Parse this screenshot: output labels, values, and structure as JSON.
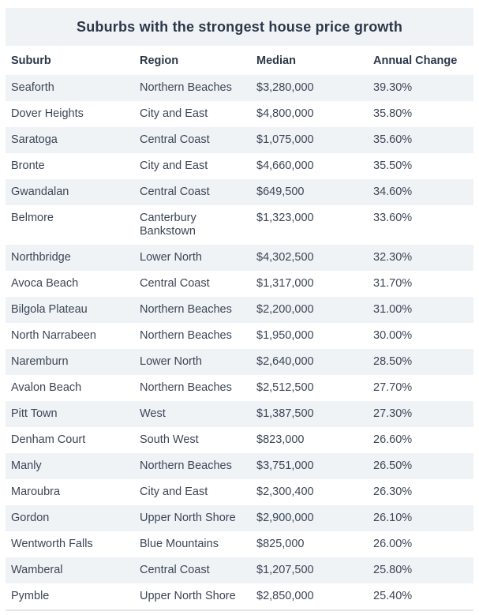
{
  "title": "Suburbs with the strongest house price growth",
  "colors": {
    "stripe_bg": "#f0f3f6",
    "title_bg": "#f0f3f6",
    "heading_text": "#2d3748",
    "body_text": "#3c4656",
    "divider": "#e2e5ea",
    "page_bg": "#ffffff"
  },
  "chart_data": {
    "type": "table",
    "title": "Suburbs with the strongest house price growth",
    "columns": [
      "Suburb",
      "Region",
      "Median",
      "Annual Change"
    ],
    "rows": [
      [
        "Seaforth",
        "Northern Beaches",
        "$3,280,000",
        "39.30%"
      ],
      [
        "Dover Heights",
        "City and East",
        "$4,800,000",
        "35.80%"
      ],
      [
        "Saratoga",
        "Central Coast",
        "$1,075,000",
        "35.60%"
      ],
      [
        "Bronte",
        "City and East",
        "$4,660,000",
        "35.50%"
      ],
      [
        "Gwandalan",
        "Central Coast",
        "$649,500",
        "34.60%"
      ],
      [
        "Belmore",
        "Canterbury Bankstown",
        "$1,323,000",
        "33.60%"
      ],
      [
        "Northbridge",
        "Lower North",
        "$4,302,500",
        "32.30%"
      ],
      [
        "Avoca Beach",
        "Central Coast",
        "$1,317,000",
        "31.70%"
      ],
      [
        "Bilgola Plateau",
        "Northern Beaches",
        "$2,200,000",
        "31.00%"
      ],
      [
        "North Narrabeen",
        "Northern Beaches",
        "$1,950,000",
        "30.00%"
      ],
      [
        "Naremburn",
        "Lower North",
        "$2,640,000",
        "28.50%"
      ],
      [
        "Avalon Beach",
        "Northern Beaches",
        "$2,512,500",
        "27.70%"
      ],
      [
        "Pitt Town",
        "West",
        "$1,387,500",
        "27.30%"
      ],
      [
        "Denham Court",
        "South West",
        "$823,000",
        "26.60%"
      ],
      [
        "Manly",
        "Northern Beaches",
        "$3,751,000",
        "26.50%"
      ],
      [
        "Maroubra",
        "City and East",
        "$2,300,400",
        "26.30%"
      ],
      [
        "Gordon",
        "Upper North Shore",
        "$2,900,000",
        "26.10%"
      ],
      [
        "Wentworth Falls",
        "Blue Mountains",
        "$825,000",
        "26.00%"
      ],
      [
        "Wamberal",
        "Central Coast",
        "$1,207,500",
        "25.80%"
      ],
      [
        "Pymble",
        "Upper North Shore",
        "$2,850,000",
        "25.40%"
      ]
    ]
  }
}
